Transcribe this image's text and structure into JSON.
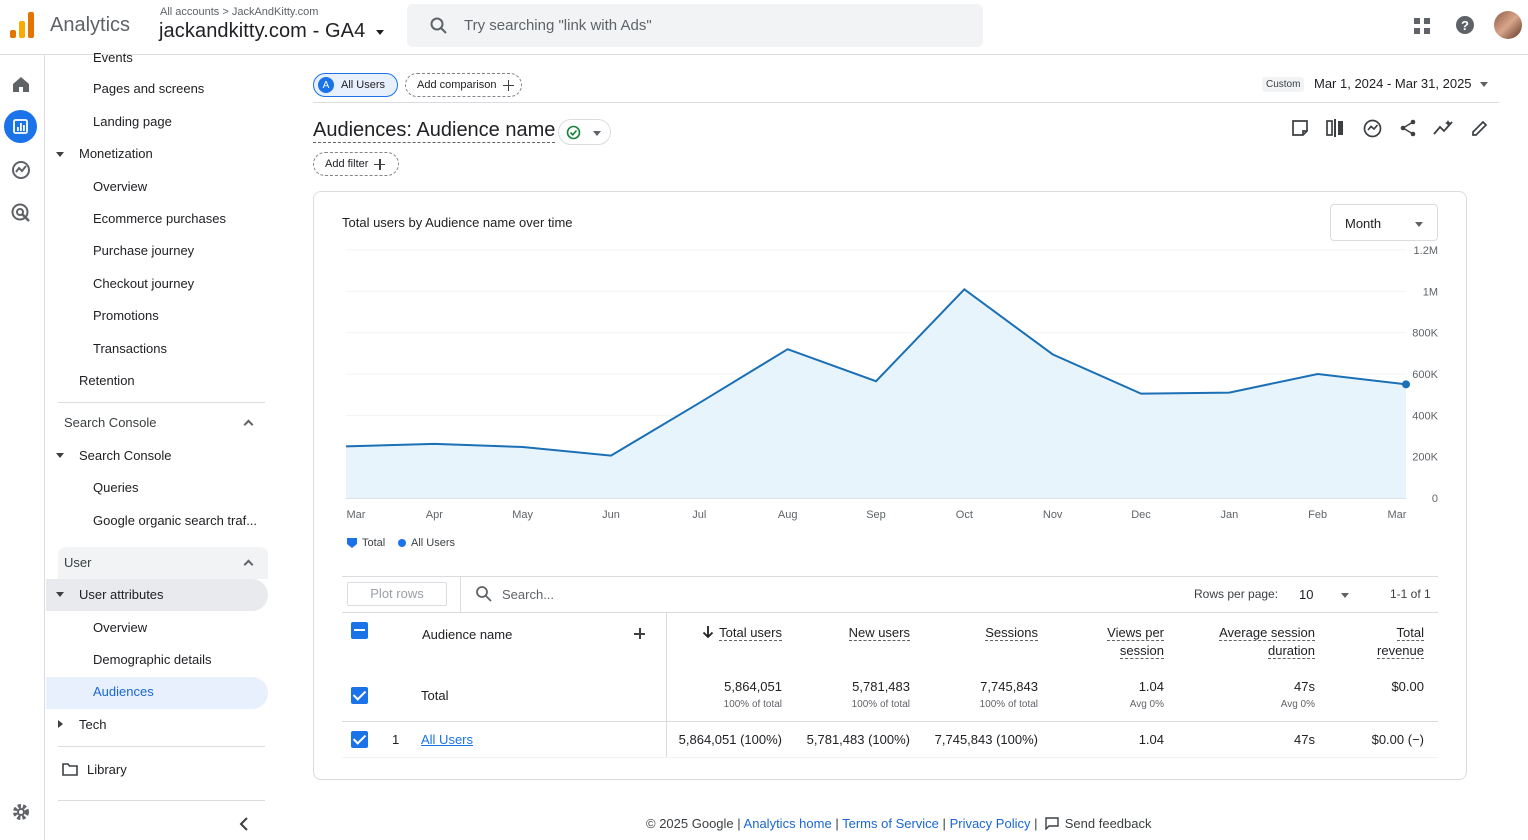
{
  "header": {
    "app_title": "Analytics",
    "breadcrumb": "All accounts > JackAndKitty.com",
    "account_name": "jackandkitty.com - GA4",
    "search_placeholder": "Try searching \"link with Ads\"",
    "icons": [
      "apps-grid-icon",
      "help-icon",
      "avatar"
    ]
  },
  "rail": {
    "icons": [
      "home-icon",
      "reports-icon",
      "explore-icon",
      "advertising-icon",
      "settings-icon"
    ]
  },
  "nav": {
    "items": [
      {
        "label": "Events"
      },
      {
        "label": "Pages and screens"
      },
      {
        "label": "Landing page"
      },
      {
        "label": "Monetization"
      },
      {
        "label": "Overview"
      },
      {
        "label": "Ecommerce purchases"
      },
      {
        "label": "Purchase journey"
      },
      {
        "label": "Checkout journey"
      },
      {
        "label": "Promotions"
      },
      {
        "label": "Transactions"
      },
      {
        "label": "Retention"
      },
      {
        "label": "Search Console"
      },
      {
        "label": "Search Console"
      },
      {
        "label": "Queries"
      },
      {
        "label": "Google organic search traf..."
      },
      {
        "label": "User"
      },
      {
        "label": "User attributes"
      },
      {
        "label": "Overview"
      },
      {
        "label": "Demographic details"
      },
      {
        "label": "Audiences"
      },
      {
        "label": "Tech"
      },
      {
        "label": "Library"
      }
    ]
  },
  "toolbar": {
    "comparison_badge": "A",
    "comparison_label": "All Users",
    "add_comparison": "Add comparison",
    "date_custom": "Custom",
    "date_range": "Mar 1, 2024 - Mar 31, 2025",
    "report_title": "Audiences: Audience name",
    "add_filter": "Add filter"
  },
  "chart_card": {
    "title": "Total users by Audience name over time",
    "granularity": "Month",
    "legend": [
      "Total",
      "All Users"
    ]
  },
  "chart_data": {
    "type": "area",
    "title": "Total users by Audience name over time",
    "x": [
      "Mar",
      "Apr",
      "May",
      "Jun",
      "Jul",
      "Aug",
      "Sep",
      "Oct",
      "Nov",
      "Dec",
      "Jan",
      "Feb",
      "Mar"
    ],
    "series": [
      {
        "name": "All Users",
        "values": [
          250000,
          262000,
          247000,
          205000,
          460000,
          720000,
          565000,
          1010000,
          695000,
          505000,
          510000,
          600000,
          550000
        ]
      }
    ],
    "y_ticks": [
      "0",
      "200K",
      "400K",
      "600K",
      "800K",
      "1M",
      "1.2M"
    ],
    "ylim": [
      0,
      1200000
    ],
    "colors": {
      "line": "#1a73e8",
      "fill": "#e8f4fc"
    }
  },
  "table": {
    "plot_rows": "Plot rows",
    "search_placeholder": "Search...",
    "rows_per_page_label": "Rows per page:",
    "rows_per_page": "10",
    "range": "1-1 of 1",
    "columns": {
      "dimension": "Audience name",
      "total_users": "Total users",
      "new_users": "New users",
      "sessions": "Sessions",
      "views_per_session_1": "Views per",
      "views_per_session_2": "session",
      "avg_session_1": "Average session",
      "avg_session_2": "duration",
      "revenue_1": "Total",
      "revenue_2": "revenue"
    },
    "totals": {
      "label": "Total",
      "total_users": "5,864,051",
      "total_users_sub": "100% of total",
      "new_users": "5,781,483",
      "new_users_sub": "100% of total",
      "sessions": "7,745,843",
      "sessions_sub": "100% of total",
      "views_per_session": "1.04",
      "views_per_session_sub": "Avg 0%",
      "avg_duration": "47s",
      "avg_duration_sub": "Avg 0%",
      "revenue": "$0.00"
    },
    "rows": [
      {
        "index": "1",
        "name": "All Users",
        "total_users": "5,864,051 (100%)",
        "new_users": "5,781,483 (100%)",
        "sessions": "7,745,843 (100%)",
        "views_per_session": "1.04",
        "avg_duration": "47s",
        "revenue": "$0.00 (−)"
      }
    ]
  },
  "footer": {
    "copyright": "© 2025 Google |",
    "analytics_home": "Analytics home",
    "sep": "|",
    "terms": "Terms of Service",
    "privacy": "Privacy Policy",
    "feedback": "Send feedback"
  }
}
